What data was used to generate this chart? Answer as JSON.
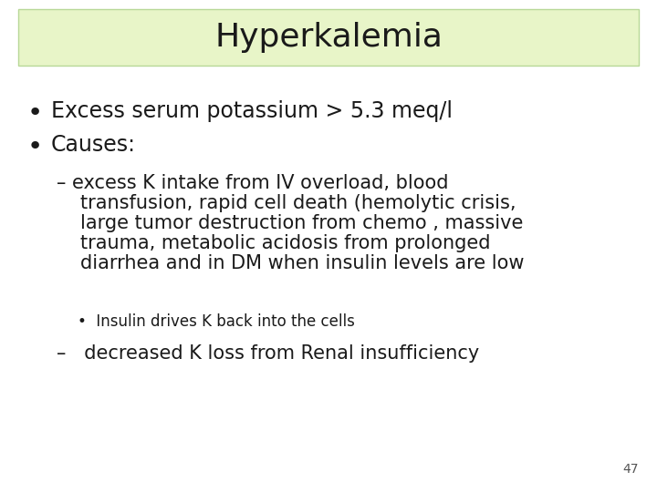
{
  "title": "Hyperkalemia",
  "title_bg_color": "#e8f5c8",
  "title_border_color": "#b8d898",
  "bg_color": "#ffffff",
  "text_color": "#1a1a1a",
  "title_fontsize": 26,
  "bullet_fontsize": 17,
  "sub_fontsize": 15,
  "subsub_fontsize": 12,
  "page_number": "47",
  "bullet1": "Excess serum potassium > 5.3 meq/l",
  "bullet2": "Causes:",
  "sub_bullet_line1": "– excess K intake from IV overload, blood",
  "sub_bullet_line2": "   transfusion, rapid cell death (hemolytic crisis,",
  "sub_bullet_line3": "   large tumor destruction from chemo , massive",
  "sub_bullet_line4": "   trauma, metabolic acidosis from prolonged",
  "sub_bullet_line5": "   diarrhea and in DM when insulin levels are low",
  "sub_sub_bullet": "•  Insulin drives K back into the cells",
  "sub_bullet2": "–   decreased K loss from Renal insufficiency"
}
